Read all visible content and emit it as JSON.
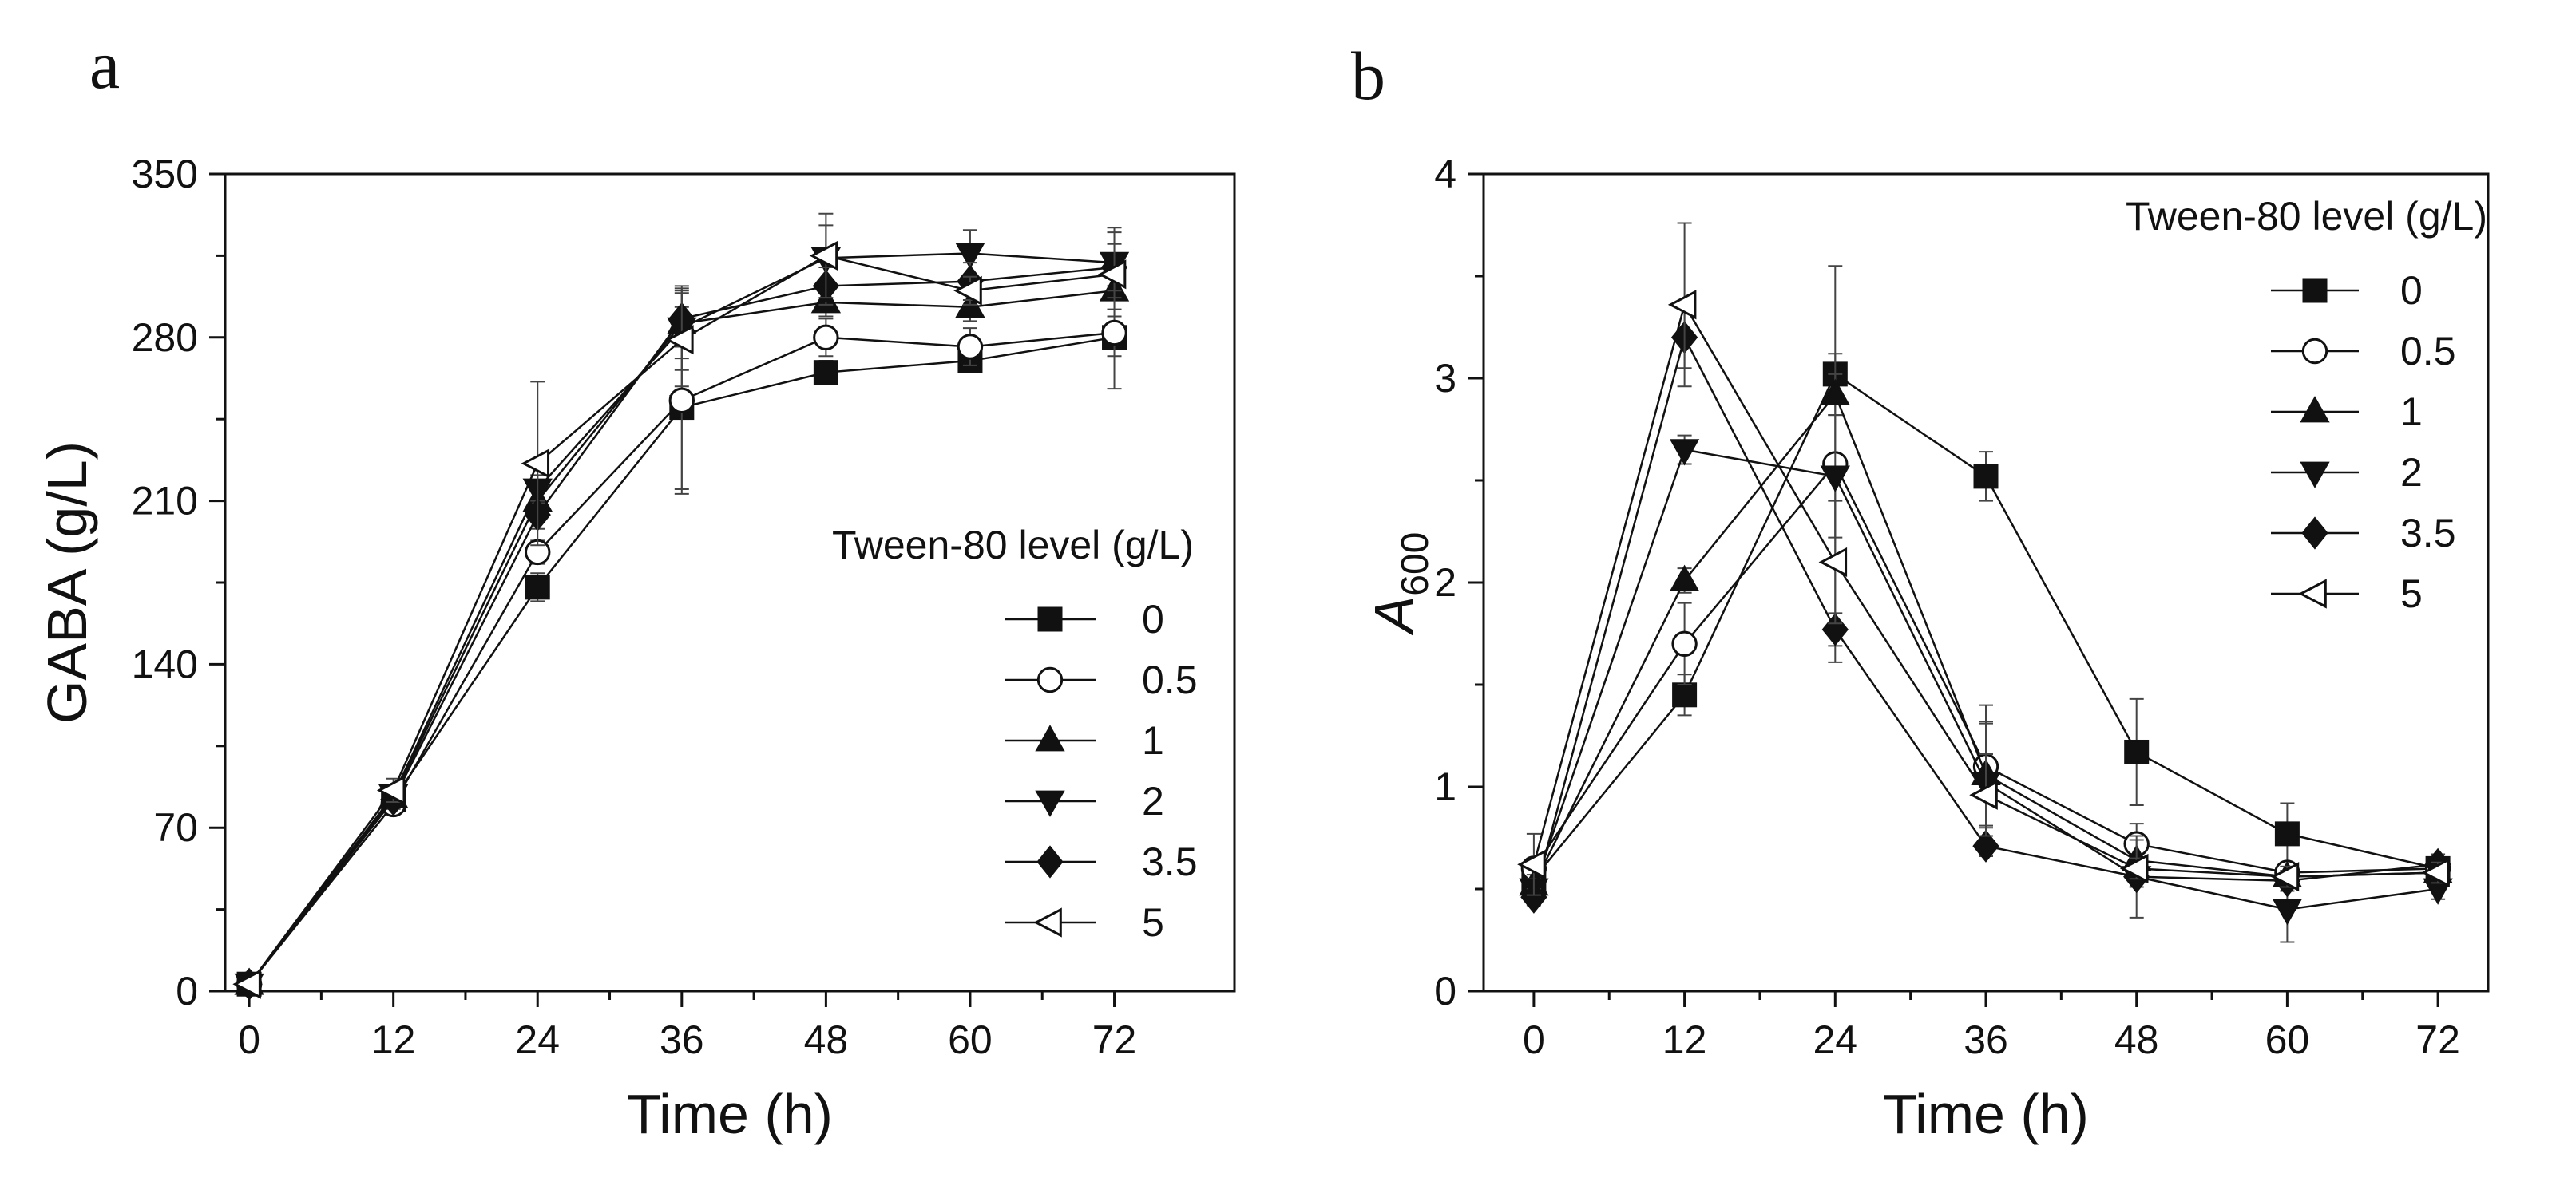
{
  "chart_data": [
    {
      "panel": "a",
      "type": "line",
      "xlabel": "Time (h)",
      "ylabel": "GABA (g/L)",
      "xlim": [
        -2,
        82
      ],
      "ylim": [
        0,
        350
      ],
      "xticks": [
        0,
        12,
        24,
        36,
        48,
        60,
        72
      ],
      "yticks": [
        0,
        70,
        140,
        210,
        280,
        350
      ],
      "legend_title": "Tween-80 level (g/L)",
      "legend_position": "center-right",
      "grid": false,
      "x": [
        0,
        12,
        24,
        36,
        48,
        60,
        72
      ],
      "series": [
        {
          "name": "0",
          "marker": "square-filled",
          "values": [
            3,
            82,
            173,
            250,
            265,
            270,
            280
          ],
          "errors": [
            1,
            4,
            6,
            35,
            5,
            5,
            22
          ]
        },
        {
          "name": "0.5",
          "marker": "circle-open",
          "values": [
            3,
            80,
            188,
            253,
            280,
            276,
            282
          ],
          "errors": [
            1,
            4,
            5,
            40,
            8,
            8,
            10
          ]
        },
        {
          "name": "1",
          "marker": "triangle-up-filled",
          "values": [
            3,
            83,
            210,
            286,
            295,
            293,
            300
          ],
          "errors": [
            1,
            4,
            6,
            15,
            6,
            6,
            8
          ]
        },
        {
          "name": "2",
          "marker": "triangle-down-filled",
          "values": [
            3,
            84,
            215,
            284,
            314,
            316,
            312
          ],
          "errors": [
            1,
            4,
            6,
            18,
            14,
            10,
            15
          ]
        },
        {
          "name": "3.5",
          "marker": "diamond-filled",
          "values": [
            3,
            82,
            204,
            288,
            302,
            304,
            310
          ],
          "errors": [
            1,
            4,
            6,
            12,
            8,
            8,
            10
          ]
        },
        {
          "name": "5",
          "marker": "triangle-left-open",
          "values": [
            3,
            86,
            226,
            279,
            315,
            300,
            307
          ],
          "errors": [
            1,
            5,
            35,
            20,
            18,
            6,
            18
          ]
        }
      ]
    },
    {
      "panel": "b",
      "type": "line",
      "xlabel": "Time (h)",
      "ylabel": "A",
      "ylabel_sub": "600",
      "xlim": [
        -4,
        76
      ],
      "ylim": [
        0,
        4
      ],
      "xticks": [
        0,
        12,
        24,
        36,
        48,
        60,
        72
      ],
      "yticks": [
        0,
        1,
        2,
        3,
        4
      ],
      "legend_title": "Tween-80 level (g/L)",
      "legend_position": "top-right",
      "grid": false,
      "x": [
        0,
        12,
        24,
        36,
        48,
        60,
        72
      ],
      "series": [
        {
          "name": "0",
          "marker": "square-filled",
          "values": [
            0.55,
            1.45,
            3.02,
            2.52,
            1.17,
            0.77,
            0.6
          ],
          "errors": [
            0.05,
            0.1,
            0.1,
            0.12,
            0.26,
            0.15,
            0.05
          ]
        },
        {
          "name": "0.5",
          "marker": "circle-open",
          "values": [
            0.6,
            1.7,
            2.58,
            1.1,
            0.72,
            0.58,
            0.6
          ],
          "errors": [
            0.05,
            0.2,
            0.97,
            0.3,
            0.1,
            0.05,
            0.05
          ]
        },
        {
          "name": "1",
          "marker": "triangle-up-filled",
          "values": [
            0.52,
            2.01,
            2.92,
            1.06,
            0.64,
            0.56,
            0.58
          ],
          "errors": [
            0.05,
            0.06,
            0.1,
            0.25,
            0.1,
            0.05,
            0.05
          ]
        },
        {
          "name": "2",
          "marker": "triangle-down-filled",
          "values": [
            0.5,
            2.65,
            2.52,
            1.02,
            0.56,
            0.4,
            0.5
          ],
          "errors": [
            0.05,
            0.07,
            0.3,
            0.3,
            0.2,
            0.16,
            0.05
          ]
        },
        {
          "name": "3.5",
          "marker": "diamond-filled",
          "values": [
            0.46,
            3.2,
            1.77,
            0.71,
            0.56,
            0.54,
            0.62
          ],
          "errors": [
            0.04,
            0.15,
            0.08,
            0.05,
            0.05,
            0.05,
            0.05
          ]
        },
        {
          "name": "5",
          "marker": "triangle-left-open",
          "values": [
            0.62,
            3.36,
            2.1,
            0.96,
            0.6,
            0.56,
            0.58
          ],
          "errors": [
            0.15,
            0.4,
            0.3,
            0.2,
            0.05,
            0.05,
            0.05
          ]
        }
      ]
    }
  ]
}
